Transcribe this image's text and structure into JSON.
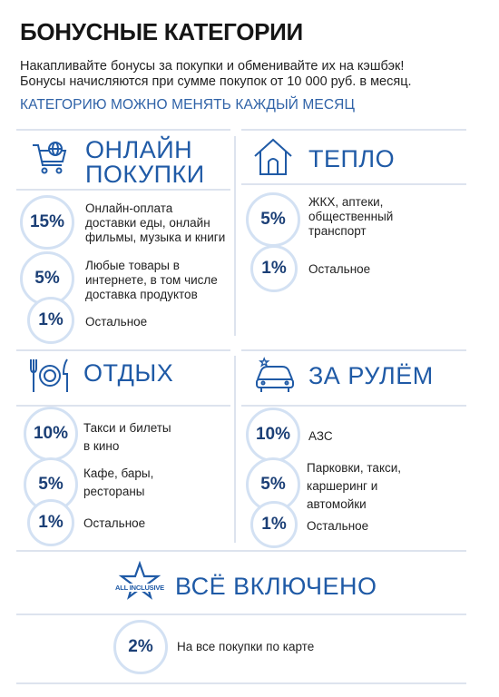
{
  "header": {
    "title": "БОНУСНЫЕ КАТЕГОРИИ",
    "line1": "Накапливайте бонусы за покупки и обменивайте их на кэшбэк!",
    "line2": "Бонусы начисляются при сумме покупок от 10 000 руб. в месяц.",
    "note": "КАТЕГОРИЮ МОЖНО МЕНЯТЬ КАЖДЫЙ МЕСЯЦ"
  },
  "colors": {
    "accent": "#1f5aa6",
    "circle_border": "#d3e1f3",
    "divider": "#dde3ee"
  },
  "online": {
    "title1": "ОНЛАЙН",
    "title2": "ПОКУПКИ",
    "icon": "shopping-cart-globe-icon",
    "items": [
      {
        "percent": "15%",
        "lines": [
          "Онлайн-оплата",
          "доставки еды, онлайн",
          "фильмы, музыка и книги"
        ]
      },
      {
        "percent": "5%",
        "lines": [
          "Любые товары в",
          "интернете, в том числе",
          "доставка продуктов"
        ]
      },
      {
        "percent": "1%",
        "lines": [
          "Остальное"
        ]
      }
    ]
  },
  "heat": {
    "title": "ТЕПЛО",
    "icon": "house-icon",
    "items": [
      {
        "percent": "5%",
        "lines": [
          "ЖКХ, аптеки,",
          "общественный",
          "транспорт"
        ]
      },
      {
        "percent": "1%",
        "lines": [
          "Остальное"
        ]
      }
    ]
  },
  "rest": {
    "title": "ОТДЫХ",
    "icon": "plate-cutlery-icon",
    "items": [
      {
        "percent": "10%",
        "lines": [
          "Такси и билеты",
          "в кино"
        ]
      },
      {
        "percent": "5%",
        "lines": [
          "Кафе, бары,",
          "рестораны"
        ]
      },
      {
        "percent": "1%",
        "lines": [
          "Остальное"
        ]
      }
    ]
  },
  "drive": {
    "title": "ЗА РУЛЁМ",
    "icon": "car-icon",
    "items": [
      {
        "percent": "10%",
        "lines": [
          "АЗС"
        ]
      },
      {
        "percent": "5%",
        "lines": [
          "Парковки, такси,",
          "каршеринг и",
          "автомойки"
        ]
      },
      {
        "percent": "1%",
        "lines": [
          "Остальное"
        ]
      }
    ]
  },
  "all": {
    "title": "ВСЁ ВКЛЮЧЕНО",
    "icon": "all-inclusive-star-icon",
    "badge": "ALL INCLUSIVE",
    "item": {
      "percent": "2%",
      "lines": [
        "На все покупки по карте"
      ]
    }
  }
}
